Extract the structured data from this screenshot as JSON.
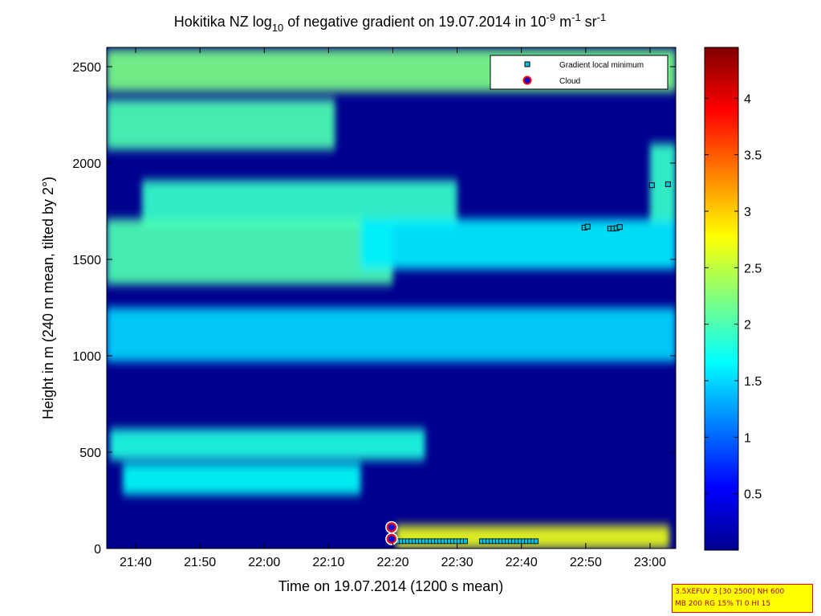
{
  "figure": {
    "title_parts": [
      "Hokitika NZ log",
      "10",
      " of negative gradient on 19.07.2014 in 10",
      "-9",
      " m",
      "-1",
      " sr",
      "-1"
    ],
    "info_box": [
      "3.5XEFUV 3 [30 2500] NH 600",
      "MB 200 RG 15% TI 0 HI 15"
    ]
  },
  "chart_data": {
    "type": "heatmap",
    "xlabel": "Time on 19.07.2014 (1200 s mean)",
    "ylabel": "Height in m (240 m mean, tilted by 2°)",
    "x_ticks": [
      "21:40",
      "21:50",
      "22:00",
      "22:10",
      "22:20",
      "22:30",
      "22:40",
      "22:50",
      "23:00"
    ],
    "x_tick_minutes": [
      1300,
      1310,
      1320,
      1330,
      1340,
      1350,
      1360,
      1370,
      1380
    ],
    "xlim_minutes": [
      1295.5,
      1384
    ],
    "y_ticks": [
      0,
      500,
      1000,
      1500,
      2000,
      2500
    ],
    "ylim": [
      0,
      2600
    ],
    "colorbar": {
      "ticks": [
        "0.5",
        "1",
        "1.5",
        "2",
        "2.5",
        "3",
        "3.5",
        "4"
      ],
      "tick_values": [
        0.5,
        1,
        1.5,
        2,
        2.5,
        3,
        3.5,
        4
      ],
      "range": [
        0,
        4.45
      ],
      "colormap": "jet"
    },
    "legend": {
      "placement": "top-right",
      "entries": [
        {
          "label": "Gradient local minimum",
          "marker": "square",
          "color": "#00c0e0"
        },
        {
          "label": "Cloud",
          "marker": "circle",
          "color": "#ff0000"
        }
      ]
    },
    "layers": [
      {
        "name": "upper-layer",
        "t0": 1295.5,
        "t1": 1384,
        "zc": 2480,
        "hw": 110,
        "value": 2.2
      },
      {
        "name": "upper-band",
        "t0": 1295.5,
        "t1": 1331,
        "zc": 2200,
        "hw": 130,
        "value": 2.0
      },
      {
        "name": "mid-upper-band",
        "t0": 1301,
        "t1": 1350,
        "zc": 1790,
        "hw": 120,
        "value": 1.9
      },
      {
        "name": "mid-layer",
        "t0": 1295.5,
        "t1": 1340,
        "zc": 1540,
        "hw": 170,
        "value": 2.0
      },
      {
        "name": "mid-layer-east",
        "t0": 1335,
        "t1": 1384,
        "zc": 1580,
        "hw": 130,
        "value": 1.6
      },
      {
        "name": "lower-mid-layer",
        "t0": 1295.5,
        "t1": 1384,
        "zc": 1110,
        "hw": 140,
        "value": 1.5
      },
      {
        "name": "low-layer",
        "t0": 1296,
        "t1": 1345,
        "zc": 540,
        "hw": 80,
        "value": 1.8
      },
      {
        "name": "low-layer-2",
        "t0": 1298,
        "t1": 1335,
        "zc": 360,
        "hw": 80,
        "value": 1.7
      },
      {
        "name": "surface-layer",
        "t0": 1340.5,
        "t1": 1383,
        "zc": 60,
        "hw": 60,
        "value": 2.7
      },
      {
        "name": "east-column",
        "t0": 1380,
        "t1": 1384,
        "zc": 1900,
        "hw": 200,
        "value": 1.9
      }
    ],
    "gradient_local_minimum": {
      "t": [
        1369.8,
        1370.3,
        1373.8,
        1374.3,
        1374.8,
        1375.3,
        1380.3,
        1382.8
      ],
      "z": [
        1665,
        1670,
        1660,
        1660,
        1662,
        1668,
        1885,
        1890
      ]
    },
    "gradient_local_minimum_ground": [
      {
        "t0": 1340.3,
        "t1": 1351.3,
        "z": 38
      },
      {
        "t0": 1353.8,
        "t1": 1362.3,
        "z": 38
      }
    ],
    "cloud": {
      "t": [
        1339.8,
        1339.8
      ],
      "z": [
        110,
        50
      ]
    }
  }
}
